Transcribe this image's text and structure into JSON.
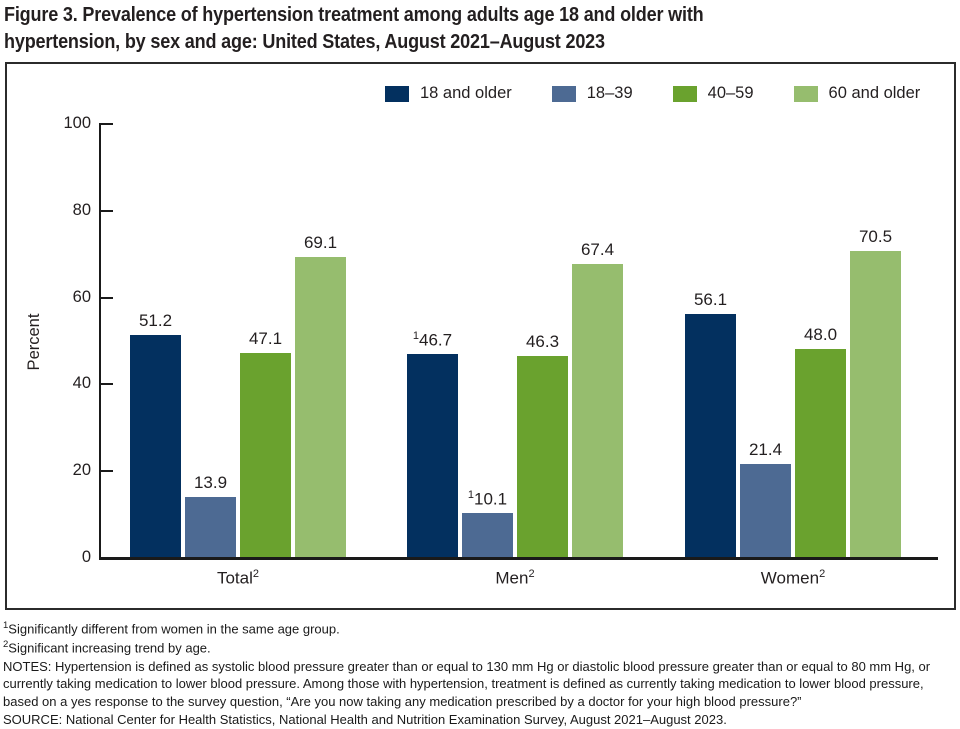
{
  "title_lines": [
    "Figure 3. Prevalence of hypertension treatment among adults age 18 and older with",
    "hypertension, by sex and age: United States, August 2021–August 2023"
  ],
  "chart_data": {
    "type": "bar",
    "title": "Prevalence of hypertension treatment among adults age 18 and older with hypertension, by sex and age: United States, August 2021–August 2023",
    "xlabel": "",
    "ylabel": "Percent",
    "ylim": [
      0,
      100
    ],
    "yticks": [
      0,
      20,
      40,
      60,
      80,
      100
    ],
    "grid": "off",
    "legend_position": "top",
    "categories": [
      {
        "label": "Total",
        "sup": "2"
      },
      {
        "label": "Men",
        "sup": "2"
      },
      {
        "label": "Women",
        "sup": "2"
      }
    ],
    "series": [
      {
        "name": "18 and older",
        "color": "#03305f",
        "values": [
          51.2,
          46.7,
          56.1
        ],
        "labels": [
          "51.2",
          "46.7",
          "56.1"
        ],
        "label_sups": [
          "",
          "1",
          ""
        ]
      },
      {
        "name": "18–39",
        "color": "#4d6a93",
        "values": [
          13.9,
          10.1,
          21.4
        ],
        "labels": [
          "13.9",
          "10.1",
          "21.4"
        ],
        "label_sups": [
          "",
          "1",
          ""
        ]
      },
      {
        "name": "40–59",
        "color": "#6aa22e",
        "values": [
          47.1,
          46.3,
          48.0
        ],
        "labels": [
          "47.1",
          "46.3",
          "48.0"
        ],
        "label_sups": [
          "",
          "",
          ""
        ]
      },
      {
        "name": "60 and older",
        "color": "#96bd6e",
        "values": [
          69.1,
          67.4,
          70.5
        ],
        "labels": [
          "69.1",
          "67.4",
          "70.5"
        ],
        "label_sups": [
          "",
          "",
          ""
        ]
      }
    ]
  },
  "footnotes": [
    {
      "sup": "1",
      "text": "Significantly different from women in the same age group."
    },
    {
      "sup": "2",
      "text": "Significant increasing trend by age."
    },
    {
      "sup": "",
      "text": "NOTES: Hypertension is defined as systolic blood pressure greater than or equal to 130 mm Hg or diastolic blood pressure greater than or equal to 80 mm Hg, or currently taking medication to lower blood pressure. Among those with hypertension, treatment is defined as currently taking medication to lower blood pressure, based on a yes response to the survey question, “Are you now taking any medication prescribed by a doctor for your high blood pressure?”"
    },
    {
      "sup": "",
      "text": "SOURCE: National Center for Health Statistics, National Health and Nutrition Examination Survey, August 2021–August 2023."
    }
  ]
}
